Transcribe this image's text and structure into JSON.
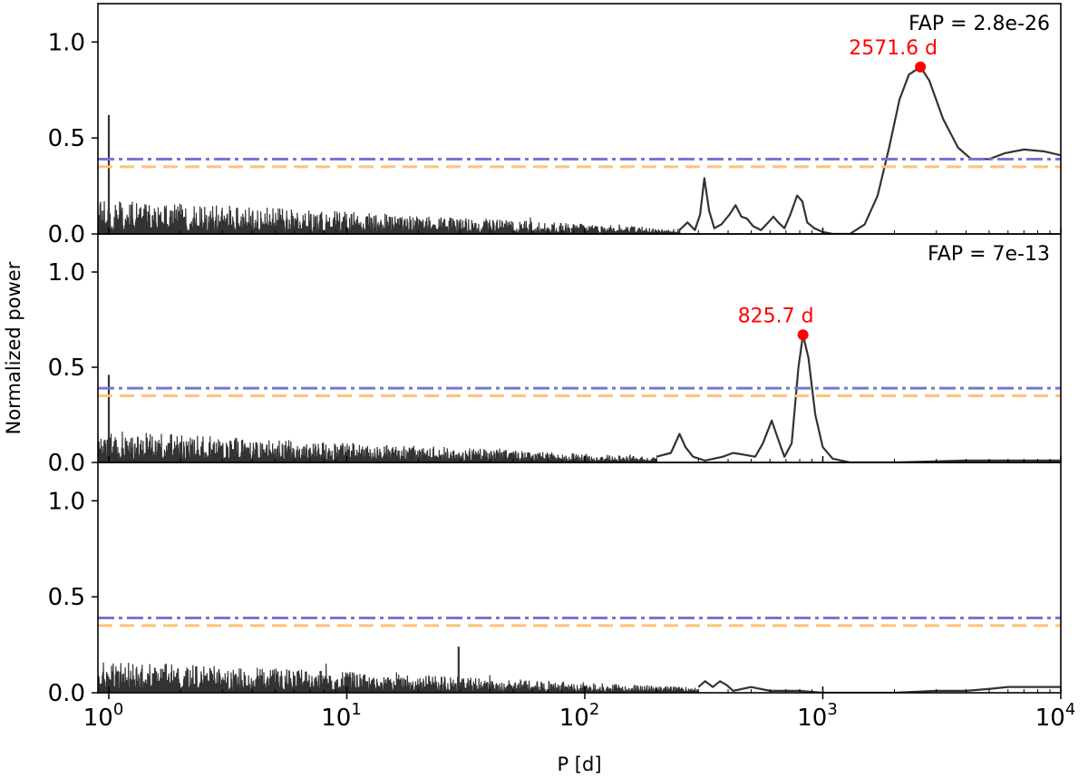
{
  "chart_data": [
    {
      "type": "line",
      "panel": "top",
      "fap_label": "FAP = 2.8e-26",
      "peak_label": "2571.6 d",
      "peak": {
        "period": 2571.6,
        "power": 0.87
      },
      "threshold_lines": [
        {
          "style": "dash-dot",
          "color": "#7777cc",
          "power": 0.39
        },
        {
          "style": "dashed",
          "color": "#ffc27a",
          "power": 0.35
        }
      ],
      "smooth_curve": [
        [
          250,
          0.02
        ],
        [
          270,
          0.06
        ],
        [
          290,
          0.02
        ],
        [
          305,
          0.1
        ],
        [
          318,
          0.29
        ],
        [
          333,
          0.12
        ],
        [
          350,
          0.03
        ],
        [
          375,
          0.05
        ],
        [
          405,
          0.1
        ],
        [
          430,
          0.15
        ],
        [
          455,
          0.09
        ],
        [
          480,
          0.08
        ],
        [
          510,
          0.04
        ],
        [
          550,
          0.02
        ],
        [
          590,
          0.06
        ],
        [
          620,
          0.09
        ],
        [
          650,
          0.06
        ],
        [
          690,
          0.03
        ],
        [
          730,
          0.1
        ],
        [
          780,
          0.2
        ],
        [
          820,
          0.17
        ],
        [
          860,
          0.06
        ],
        [
          920,
          0.03
        ],
        [
          1000,
          0.01
        ],
        [
          1100,
          0.0
        ],
        [
          1300,
          0.0
        ],
        [
          1500,
          0.05
        ],
        [
          1700,
          0.2
        ],
        [
          1900,
          0.45
        ],
        [
          2100,
          0.7
        ],
        [
          2300,
          0.83
        ],
        [
          2571.6,
          0.87
        ],
        [
          2800,
          0.8
        ],
        [
          3200,
          0.6
        ],
        [
          3700,
          0.45
        ],
        [
          4200,
          0.39
        ],
        [
          5000,
          0.39
        ],
        [
          5800,
          0.42
        ],
        [
          7000,
          0.44
        ],
        [
          8500,
          0.43
        ],
        [
          10000,
          0.41
        ]
      ],
      "noise": {
        "level_start": 0.13,
        "level_end": 0.02,
        "extent_end_period": 250,
        "spike": {
          "period": 1.0,
          "power": 0.62
        }
      }
    },
    {
      "type": "line",
      "panel": "middle",
      "fap_label": "FAP = 7e-13",
      "peak_label": "825.7 d",
      "peak": {
        "period": 825.7,
        "power": 0.67
      },
      "threshold_lines": [
        {
          "style": "dash-dot",
          "color": "#7777cc",
          "power": 0.39
        },
        {
          "style": "dashed",
          "color": "#ffc27a",
          "power": 0.35
        }
      ],
      "smooth_curve": [
        [
          200,
          0.03
        ],
        [
          230,
          0.05
        ],
        [
          250,
          0.15
        ],
        [
          265,
          0.08
        ],
        [
          285,
          0.03
        ],
        [
          320,
          0.01
        ],
        [
          380,
          0.03
        ],
        [
          420,
          0.05
        ],
        [
          470,
          0.04
        ],
        [
          520,
          0.03
        ],
        [
          560,
          0.1
        ],
        [
          610,
          0.22
        ],
        [
          650,
          0.12
        ],
        [
          690,
          0.03
        ],
        [
          740,
          0.1
        ],
        [
          790,
          0.5
        ],
        [
          825.7,
          0.67
        ],
        [
          870,
          0.55
        ],
        [
          930,
          0.25
        ],
        [
          1000,
          0.08
        ],
        [
          1100,
          0.02
        ],
        [
          1300,
          0.0
        ],
        [
          2000,
          0.0
        ],
        [
          4000,
          0.01
        ],
        [
          7000,
          0.01
        ],
        [
          10000,
          0.01
        ]
      ],
      "noise": {
        "level_start": 0.12,
        "level_end": 0.02,
        "extent_end_period": 200,
        "spike": {
          "period": 1.0,
          "power": 0.46
        }
      }
    },
    {
      "type": "line",
      "panel": "bottom",
      "fap_label": "",
      "peak_label": "",
      "threshold_lines": [
        {
          "style": "dash-dot",
          "color": "#7777cc",
          "power": 0.39
        },
        {
          "style": "dashed",
          "color": "#ffc27a",
          "power": 0.35
        }
      ],
      "smooth_curve": [
        [
          300,
          0.03
        ],
        [
          320,
          0.06
        ],
        [
          345,
          0.03
        ],
        [
          370,
          0.06
        ],
        [
          395,
          0.04
        ],
        [
          420,
          0.01
        ],
        [
          500,
          0.03
        ],
        [
          600,
          0.01
        ],
        [
          800,
          0.01
        ],
        [
          1000,
          0.0
        ],
        [
          1500,
          0.0
        ],
        [
          2000,
          0.0
        ],
        [
          3000,
          0.01
        ],
        [
          4000,
          0.01
        ],
        [
          5000,
          0.02
        ],
        [
          6000,
          0.03
        ],
        [
          8000,
          0.03
        ],
        [
          10000,
          0.03
        ]
      ],
      "noise": {
        "level_start": 0.12,
        "level_end": 0.02,
        "extent_end_period": 300,
        "spike": {
          "period": 29.5,
          "power": 0.24
        }
      }
    }
  ],
  "axes": {
    "xlabel": "P [d]",
    "ylabel": "Normalized power",
    "xscale": "log",
    "xlim": [
      0.9,
      10000
    ],
    "ylim": [
      0,
      1.2
    ],
    "x_major_ticks": [
      {
        "value": 1,
        "base": "10",
        "exp": "0"
      },
      {
        "value": 10,
        "base": "10",
        "exp": "1"
      },
      {
        "value": 100,
        "base": "10",
        "exp": "2"
      },
      {
        "value": 1000,
        "base": "10",
        "exp": "3"
      },
      {
        "value": 10000,
        "base": "10",
        "exp": "4"
      }
    ],
    "y_ticks": [
      {
        "value": 0.0,
        "label": "0.0"
      },
      {
        "value": 0.5,
        "label": "0.5"
      },
      {
        "value": 1.0,
        "label": "1.0"
      }
    ]
  },
  "colors": {
    "curve": "#333333",
    "peak_marker": "#ff0000",
    "dash_dot": "#7777cc",
    "dashed": "#ffc27a"
  }
}
